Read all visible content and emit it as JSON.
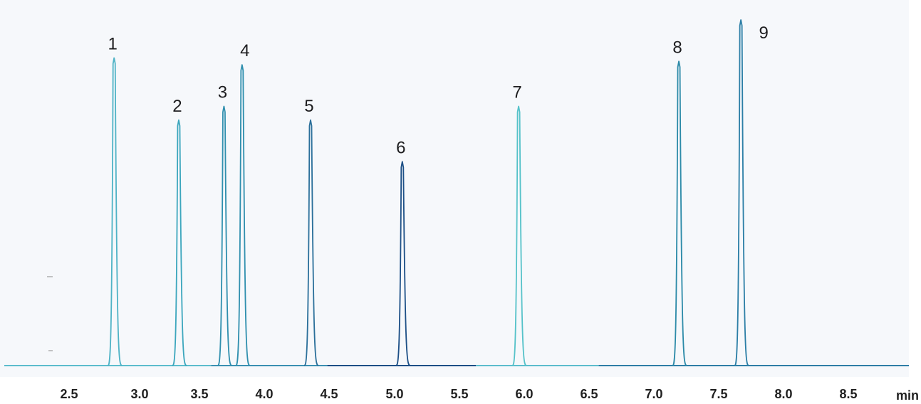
{
  "chart_data": {
    "type": "line",
    "title": "",
    "xlabel": "min",
    "ylabel": "",
    "xlim": [
      2.0,
      9.0
    ],
    "ylim": [
      0,
      100
    ],
    "x_ticks": [
      "2.5",
      "3.0",
      "3.5",
      "4.0",
      "4.5",
      "5.0",
      "5.5",
      "6.0",
      "6.5",
      "7.0",
      "7.5",
      "8.0",
      "8.5"
    ],
    "grid": false,
    "legend": "none",
    "peaks": [
      {
        "label": "1",
        "x": 2.85,
        "y": 89,
        "color": "#4fb3c6"
      },
      {
        "label": "2",
        "x": 3.35,
        "y": 71,
        "color": "#3ba6bd"
      },
      {
        "label": "3",
        "x": 3.7,
        "y": 75,
        "color": "#2f8fae"
      },
      {
        "label": "4",
        "x": 3.84,
        "y": 87,
        "color": "#2f8fae"
      },
      {
        "label": "5",
        "x": 4.37,
        "y": 71,
        "color": "#2a6f9a"
      },
      {
        "label": "6",
        "x": 5.08,
        "y": 59,
        "color": "#1c4f86"
      },
      {
        "label": "7",
        "x": 5.98,
        "y": 75,
        "color": "#55c2c9"
      },
      {
        "label": "8",
        "x": 7.22,
        "y": 88,
        "color": "#2b8aa8"
      },
      {
        "label": "9",
        "x": 7.7,
        "y": 100,
        "color": "#2b7ea6"
      }
    ],
    "colors": {
      "trace_start": "#5cbccc",
      "trace_mid": "#2e7da6",
      "trace_dark": "#1d4f86",
      "axis_text": "#1f1f1f"
    }
  }
}
